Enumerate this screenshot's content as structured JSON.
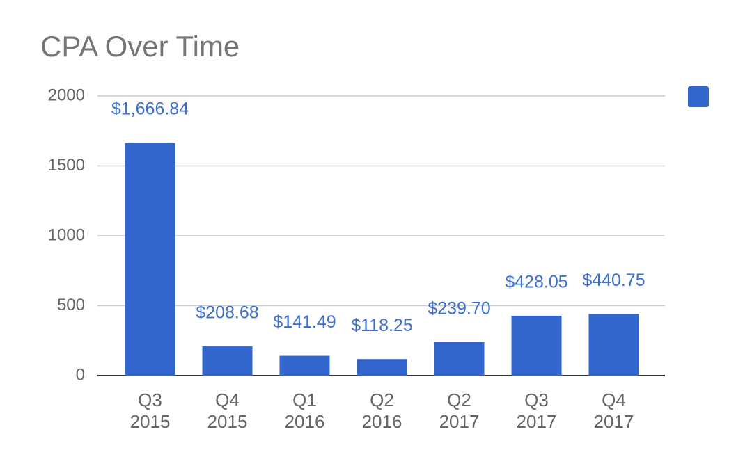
{
  "chart_data": {
    "type": "bar",
    "title": "CPA Over Time",
    "categories": [
      "Q3 2015",
      "Q4 2015",
      "Q1 2016",
      "Q2 2016",
      "Q2 2017",
      "Q3 2017",
      "Q4 2017"
    ],
    "values": [
      1666.84,
      208.68,
      141.49,
      118.25,
      239.7,
      428.05,
      440.75
    ],
    "value_labels": [
      "$1,666.84",
      "$208.68",
      "$141.49",
      "$118.25",
      "$239.70",
      "$428.05",
      "$440.75"
    ],
    "color": "#3366cc",
    "ylim": [
      0,
      2000
    ],
    "yticks": [
      0,
      500,
      1000,
      1500,
      2000
    ],
    "grid": true
  }
}
